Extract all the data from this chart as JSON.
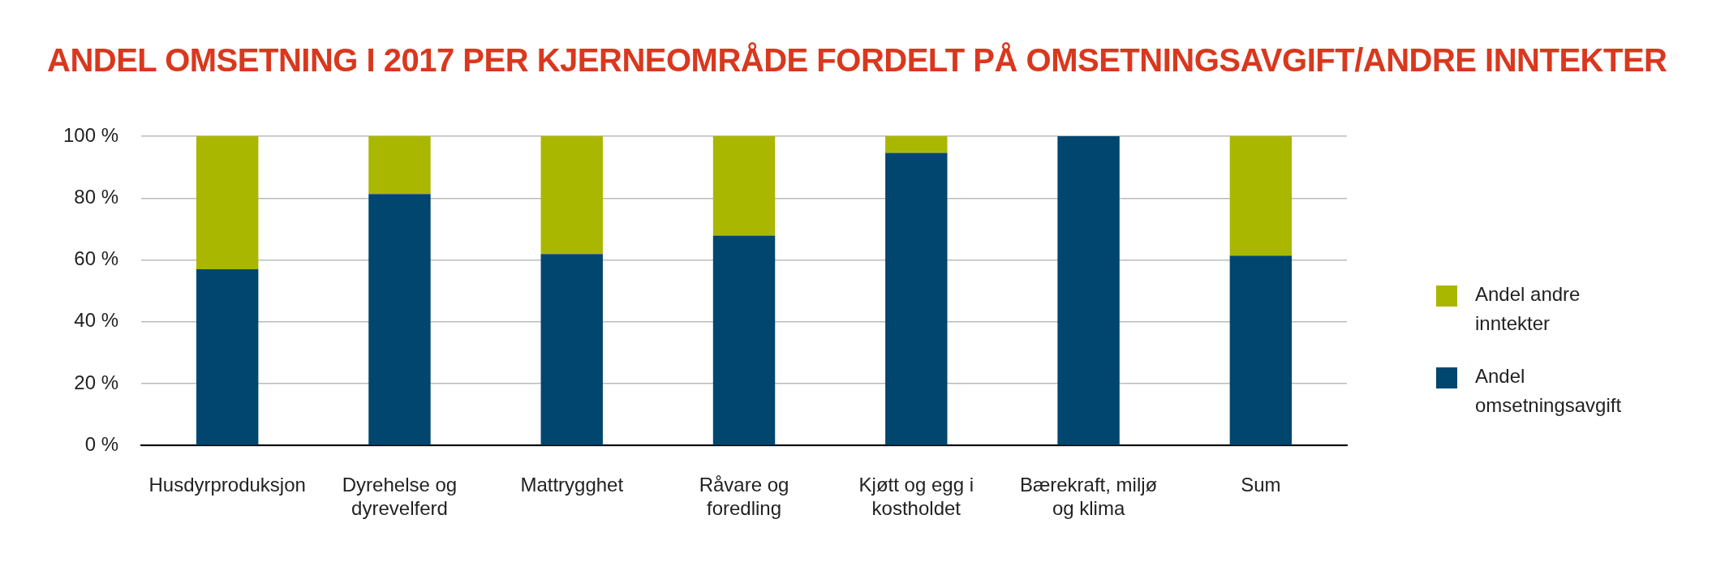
{
  "chart_data": {
    "type": "bar",
    "title": "ANDEL OMSETNING I 2017 PER KJERNEOMRÅDE FORDELT PÅ OMSETNINGSAVGIFT/ANDRE INNTEKTER",
    "categories": [
      "Husdyrproduksjon",
      "Dyrehelse og dyrevelferd",
      "Mattrygghet",
      "Råvare og foredling",
      "Kjøtt og egg i kostholdet",
      "Bærekraft, miljø og klima",
      "Sum"
    ],
    "stacked": true,
    "series": [
      {
        "name": "Andel omsetningsavgift",
        "color": "#00466e",
        "values": [
          57,
          81.3,
          61.9,
          67.9,
          94.6,
          100,
          61.4
        ]
      },
      {
        "name": "Andel andre inntekter",
        "color": "#aab700",
        "values": [
          43,
          18.7,
          38.1,
          32.1,
          5.4,
          0,
          38.6
        ]
      }
    ],
    "ylim": [
      0,
      100
    ],
    "yticks": [
      {
        "value": 0,
        "label": "0 %"
      },
      {
        "value": 20,
        "label": "20 %"
      },
      {
        "value": 40,
        "label": "40 %"
      },
      {
        "value": 60,
        "label": "60 %"
      },
      {
        "value": 80,
        "label": "80 %"
      },
      {
        "value": 100,
        "label": "100 %"
      }
    ],
    "grid": "y",
    "legend": "right"
  }
}
